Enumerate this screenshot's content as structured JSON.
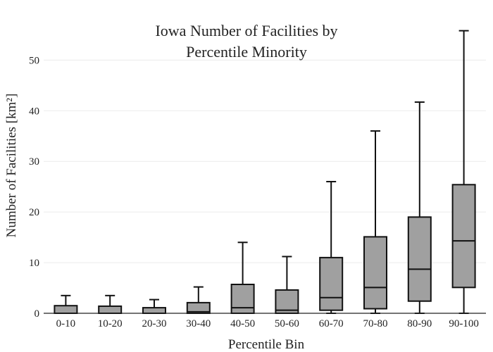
{
  "chart_data": {
    "type": "box",
    "title_lines": [
      "Iowa Number of Facilities by",
      "Percentile Minority"
    ],
    "xlabel": "Percentile Bin",
    "ylabel": "Number of Facilities [km²]",
    "ylim": [
      0,
      57
    ],
    "yticks": [
      0,
      10,
      20,
      30,
      40,
      50
    ],
    "grid": true,
    "colors": {
      "box_fill": "#a0a0a0",
      "box_stroke": "#111111",
      "grid": "#ececec"
    },
    "categories": [
      "0-10",
      "10-20",
      "20-30",
      "30-40",
      "40-50",
      "50-60",
      "60-70",
      "70-80",
      "80-90",
      "90-100"
    ],
    "boxes": [
      {
        "category": "0-10",
        "whisker_low": 0,
        "q1": 0,
        "median": 0,
        "q3": 1.5,
        "whisker_high": 3.5
      },
      {
        "category": "10-20",
        "whisker_low": 0,
        "q1": 0,
        "median": 0,
        "q3": 1.4,
        "whisker_high": 3.5
      },
      {
        "category": "20-30",
        "whisker_low": 0,
        "q1": 0,
        "median": 0,
        "q3": 1.1,
        "whisker_high": 2.7
      },
      {
        "category": "30-40",
        "whisker_low": 0,
        "q1": 0,
        "median": 0.3,
        "q3": 2.1,
        "whisker_high": 5.2
      },
      {
        "category": "40-50",
        "whisker_low": 0,
        "q1": 0,
        "median": 1.1,
        "q3": 5.7,
        "whisker_high": 14.0
      },
      {
        "category": "50-60",
        "whisker_low": 0,
        "q1": 0,
        "median": 0.6,
        "q3": 4.6,
        "whisker_high": 11.2
      },
      {
        "category": "60-70",
        "whisker_low": 0,
        "q1": 0.6,
        "median": 3.1,
        "q3": 11.0,
        "whisker_high": 26.0
      },
      {
        "category": "70-80",
        "whisker_low": 0,
        "q1": 0.9,
        "median": 5.1,
        "q3": 15.1,
        "whisker_high": 36.0
      },
      {
        "category": "80-90",
        "whisker_low": 0,
        "q1": 2.4,
        "median": 8.7,
        "q3": 19.0,
        "whisker_high": 41.7
      },
      {
        "category": "90-100",
        "whisker_low": 0,
        "q1": 5.1,
        "median": 14.3,
        "q3": 25.4,
        "whisker_high": 55.8
      }
    ]
  }
}
